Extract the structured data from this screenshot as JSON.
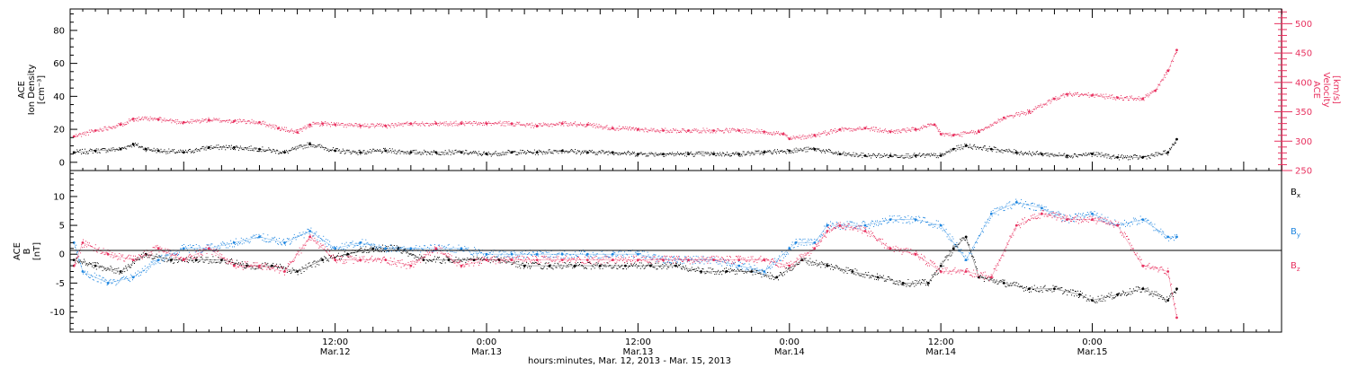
{
  "colors": {
    "density": "#000000",
    "velocity": "#e8315f",
    "bx": "#000000",
    "by": "#1f86e0",
    "bz": "#e8315f"
  },
  "x_axis": {
    "caption": "hours:minutes, Mar. 12, 2013 - Mar. 15, 2013",
    "range_hours": [
      -9,
      87
    ],
    "ticks": [
      {
        "hour": 12,
        "time": "12:00",
        "date": "Mar.12"
      },
      {
        "hour": 24,
        "time": "0:00",
        "date": "Mar.13"
      },
      {
        "hour": 36,
        "time": "12:00",
        "date": "Mar.13"
      },
      {
        "hour": 48,
        "time": "0:00",
        "date": "Mar.14"
      },
      {
        "hour": 60,
        "time": "12:00",
        "date": "Mar.14"
      },
      {
        "hour": 72,
        "time": "0:00",
        "date": "Mar.15"
      }
    ]
  },
  "chart_data": [
    {
      "type": "scatter",
      "panel": "plasma",
      "ylabel_left": [
        "ACE",
        "Ion Density",
        "[cm⁻³]"
      ],
      "ylabel_right": [
        "ACE",
        "Velocity",
        "[km/s]"
      ],
      "ylim_left": [
        -5,
        93
      ],
      "ylim_right": [
        250,
        525
      ],
      "yticks_left": [
        0,
        20,
        40,
        60,
        80
      ],
      "yticks_right": [
        250,
        300,
        350,
        400,
        450,
        500
      ],
      "series": [
        {
          "name": "Ion Density",
          "axis": "left",
          "x": [
            -8.7,
            -7,
            -5,
            -4,
            -3,
            -2,
            0,
            2,
            4,
            6,
            8,
            10,
            12,
            14,
            16,
            18,
            20,
            22,
            24,
            26,
            28,
            30,
            32,
            34,
            36,
            38,
            40,
            42,
            44,
            46,
            48,
            50,
            52,
            54,
            56,
            58,
            60,
            61,
            62,
            64,
            66,
            68,
            70,
            72,
            74,
            76,
            78,
            78.7
          ],
          "y": [
            6,
            7,
            8,
            11,
            8,
            7,
            6,
            9,
            9,
            8,
            6,
            11,
            7,
            6,
            7,
            6,
            6,
            6,
            5,
            6,
            6,
            7,
            6,
            6,
            5,
            5,
            5,
            5,
            5,
            6,
            7,
            8,
            5,
            4,
            4,
            4,
            4,
            8,
            10,
            8,
            6,
            5,
            4,
            5,
            3,
            3,
            6,
            14
          ]
        },
        {
          "name": "Velocity",
          "axis": "right",
          "x": [
            -8.7,
            -7,
            -5,
            -4,
            -2,
            0,
            2,
            4,
            6,
            7.5,
            9,
            10,
            11,
            12,
            14,
            16,
            18,
            20,
            22,
            24,
            26,
            28,
            30,
            32,
            34,
            36,
            38,
            40,
            42,
            44,
            46,
            47.5,
            48,
            50,
            52,
            54,
            56,
            58,
            59.5,
            60,
            61,
            63,
            65,
            67,
            69,
            70,
            72,
            74,
            76,
            77,
            78,
            78.7
          ],
          "y": [
            308,
            318,
            328,
            338,
            337,
            332,
            336,
            334,
            332,
            322,
            315,
            328,
            330,
            328,
            326,
            326,
            330,
            330,
            330,
            330,
            330,
            326,
            330,
            328,
            322,
            320,
            318,
            318,
            318,
            318,
            316,
            312,
            304,
            310,
            320,
            322,
            316,
            320,
            328,
            312,
            310,
            316,
            340,
            350,
            372,
            380,
            378,
            374,
            372,
            386,
            420,
            455
          ]
        }
      ]
    },
    {
      "type": "scatter",
      "panel": "magnetic field",
      "ylabel_left": [
        "ACE",
        "B",
        "[nT]"
      ],
      "ylim": [
        -13.5,
        14.5
      ],
      "yticks": [
        -10,
        -5,
        0,
        5,
        10
      ],
      "legend": [
        "Bx",
        "By",
        "Bz"
      ],
      "legend_placement": "right",
      "series": [
        {
          "name": "Bx",
          "x": [
            -8.7,
            -7,
            -5,
            -3,
            -1,
            1,
            3,
            5,
            7,
            9,
            11,
            13,
            15,
            17,
            19,
            21,
            23,
            25,
            27,
            29,
            31,
            33,
            35,
            37,
            39,
            41,
            43,
            45,
            47,
            49,
            51,
            53,
            55,
            57,
            59,
            60,
            61,
            62,
            63,
            65,
            67,
            69,
            71,
            72,
            74,
            76,
            78,
            78.7
          ],
          "y": [
            -1,
            -2,
            -3,
            0,
            -1,
            -1,
            -1,
            -2,
            -2,
            -3,
            -1,
            0,
            1,
            1,
            -1,
            -1,
            -1,
            -1,
            -2,
            -2,
            -2,
            -2,
            -2,
            -2,
            -2,
            -3,
            -3,
            -3,
            -4,
            -1,
            -2,
            -3,
            -4,
            -5,
            -5,
            -2,
            1,
            3,
            -4,
            -5,
            -6,
            -6,
            -7,
            -8,
            -7,
            -6,
            -8,
            -6
          ]
        },
        {
          "name": "By",
          "x": [
            -8.7,
            -8,
            -6,
            -4,
            -2,
            0,
            2,
            4,
            6,
            8,
            10,
            12,
            14,
            16,
            18,
            20,
            22,
            24,
            26,
            28,
            30,
            32,
            34,
            36,
            38,
            40,
            42,
            44,
            46,
            48,
            48.5,
            50,
            51,
            52,
            54,
            56,
            58,
            60,
            62,
            64,
            66,
            68,
            70,
            72,
            74,
            76,
            78,
            78.7
          ],
          "y": [
            2,
            -3,
            -5,
            -4,
            -1,
            1,
            1,
            2,
            3,
            2,
            4,
            1,
            2,
            1,
            1,
            1,
            1,
            0,
            0,
            0,
            0,
            0,
            0,
            0,
            -1,
            -1,
            -1,
            -2,
            -3,
            1,
            2,
            2,
            5,
            5,
            5,
            6,
            6,
            5,
            -1,
            7,
            9,
            8,
            6,
            7,
            5,
            6,
            3,
            3
          ]
        },
        {
          "name": "Bz",
          "x": [
            -8.7,
            -8,
            -6,
            -4,
            -2,
            0,
            2,
            4,
            6,
            8,
            10,
            12,
            14,
            16,
            18,
            20,
            22,
            24,
            26,
            28,
            30,
            32,
            34,
            36,
            38,
            40,
            42,
            44,
            46,
            48,
            50,
            51,
            52,
            54,
            56,
            58,
            60,
            62,
            64,
            66,
            68,
            70,
            72,
            74,
            76,
            78,
            78.7
          ],
          "y": [
            -2,
            2,
            0,
            -1,
            1,
            -1,
            1,
            -2,
            -2,
            -3,
            3,
            -1,
            -1,
            -1,
            -2,
            1,
            -2,
            -1,
            -1,
            -1,
            -1,
            -1,
            -1,
            -1,
            -1,
            -1,
            -1,
            -1,
            -1,
            -2,
            1,
            4,
            5,
            4,
            1,
            0,
            -3,
            -3,
            -4,
            5,
            7,
            6,
            6,
            5,
            -2,
            -3,
            -11
          ]
        }
      ]
    }
  ]
}
